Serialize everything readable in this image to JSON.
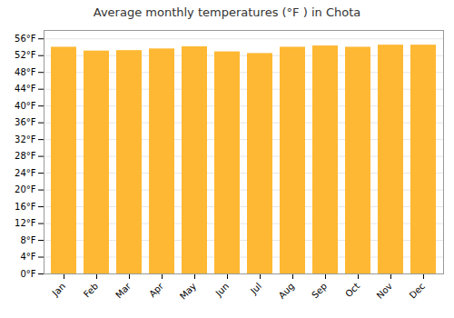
{
  "chart_data": {
    "type": "bar",
    "title": "Average monthly temperatures (°F ) in Chota",
    "categories": [
      "Jan",
      "Feb",
      "Mar",
      "Apr",
      "May",
      "Jun",
      "Jul",
      "Aug",
      "Sep",
      "Oct",
      "Nov",
      "Dec"
    ],
    "values": [
      54.0,
      53.1,
      53.2,
      53.6,
      54.1,
      52.9,
      52.5,
      54.0,
      54.3,
      54.0,
      54.5,
      54.5
    ],
    "color": "#FFB833",
    "ylim": [
      0,
      58
    ],
    "yticks": [
      {
        "value": 0,
        "label": "0°F"
      },
      {
        "value": 4,
        "label": "4°F"
      },
      {
        "value": 8,
        "label": "8°F"
      },
      {
        "value": 12,
        "label": "12°F"
      },
      {
        "value": 16,
        "label": "16°F"
      },
      {
        "value": 20,
        "label": "20°F"
      },
      {
        "value": 24,
        "label": "24°F"
      },
      {
        "value": 28,
        "label": "28°F"
      },
      {
        "value": 32,
        "label": "32°F"
      },
      {
        "value": 36,
        "label": "36°F"
      },
      {
        "value": 40,
        "label": "40°F"
      },
      {
        "value": 44,
        "label": "44°F"
      },
      {
        "value": 48,
        "label": "48°F"
      },
      {
        "value": 52,
        "label": "52°F"
      },
      {
        "value": 56,
        "label": "56°F"
      }
    ],
    "grid": true
  }
}
